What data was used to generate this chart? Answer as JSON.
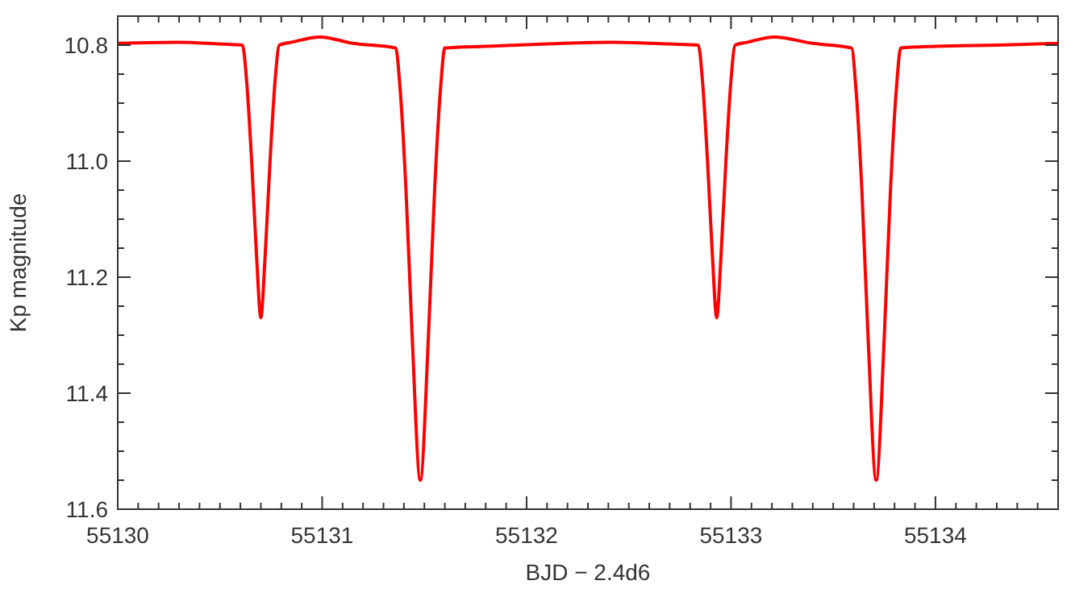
{
  "chart_data": {
    "type": "line",
    "xlabel": "BJD − 2.4d6",
    "ylabel": "Kp magnitude",
    "xlim": [
      55130,
      55134.6
    ],
    "ylim": [
      11.6,
      10.75
    ],
    "xticks": [
      55130,
      {
        "value": 55130.1,
        "label": null
      },
      {
        "value": 55130.2,
        "label": null
      },
      {
        "value": 55130.3,
        "label": null
      },
      {
        "value": 55130.4,
        "label": null
      },
      {
        "value": 55130.5,
        "label": null
      },
      {
        "value": 55130.6,
        "label": null
      },
      {
        "value": 55130.7,
        "label": null
      },
      {
        "value": 55130.8,
        "label": null
      },
      {
        "value": 55130.9,
        "label": null
      },
      55131,
      {
        "value": 55131.1,
        "label": null
      },
      {
        "value": 55131.2,
        "label": null
      },
      {
        "value": 55131.3,
        "label": null
      },
      {
        "value": 55131.4,
        "label": null
      },
      {
        "value": 55131.5,
        "label": null
      },
      {
        "value": 55131.6,
        "label": null
      },
      {
        "value": 55131.7,
        "label": null
      },
      {
        "value": 55131.8,
        "label": null
      },
      {
        "value": 55131.9,
        "label": null
      },
      55132,
      {
        "value": 55132.1,
        "label": null
      },
      {
        "value": 55132.2,
        "label": null
      },
      {
        "value": 55132.3,
        "label": null
      },
      {
        "value": 55132.4,
        "label": null
      },
      {
        "value": 55132.5,
        "label": null
      },
      {
        "value": 55132.6,
        "label": null
      },
      {
        "value": 55132.7,
        "label": null
      },
      {
        "value": 55132.8,
        "label": null
      },
      {
        "value": 55132.9,
        "label": null
      },
      55133,
      {
        "value": 55133.1,
        "label": null
      },
      {
        "value": 55133.2,
        "label": null
      },
      {
        "value": 55133.3,
        "label": null
      },
      {
        "value": 55133.4,
        "label": null
      },
      {
        "value": 55133.5,
        "label": null
      },
      {
        "value": 55133.6,
        "label": null
      },
      {
        "value": 55133.7,
        "label": null
      },
      {
        "value": 55133.8,
        "label": null
      },
      {
        "value": 55133.9,
        "label": null
      },
      55134,
      {
        "value": 55134.1,
        "label": null
      },
      {
        "value": 55134.2,
        "label": null
      },
      {
        "value": 55134.3,
        "label": null
      },
      {
        "value": 55134.4,
        "label": null
      },
      {
        "value": 55134.5,
        "label": null
      }
    ],
    "yticks": [
      10.8,
      {
        "value": 10.85,
        "label": null
      },
      {
        "value": 10.9,
        "label": null
      },
      {
        "value": 10.95,
        "label": null
      },
      {
        "value": 11.0,
        "label": "11.0"
      },
      {
        "value": 11.05,
        "label": null
      },
      {
        "value": 11.1,
        "label": null
      },
      {
        "value": 11.15,
        "label": null
      },
      11.2,
      {
        "value": 11.25,
        "label": null
      },
      {
        "value": 11.3,
        "label": null
      },
      {
        "value": 11.35,
        "label": null
      },
      11.4,
      {
        "value": 11.45,
        "label": null
      },
      {
        "value": 11.5,
        "label": null
      },
      {
        "value": 11.55,
        "label": null
      },
      11.6
    ],
    "marker": "none",
    "line_style": "solid",
    "series": [
      {
        "color": "#ff0000",
        "x": [
          55130,
          55130.3,
          55130.5,
          55130.61,
          55130.63,
          55130.655,
          55130.68,
          55130.7,
          55130.72,
          55130.745,
          55130.77,
          55130.79,
          55130.85,
          55130.99,
          55131.15,
          55131.36,
          55131.38,
          55131.41,
          55131.44,
          55131.48,
          55131.52,
          55131.55,
          55131.58,
          55131.6,
          55131.8,
          55132.1,
          55132.4,
          55132.7,
          55132.84,
          55132.86,
          55132.885,
          55132.91,
          55132.93,
          55132.95,
          55132.975,
          55133,
          55133.02,
          55133.08,
          55133.21,
          55133.4,
          55133.59,
          55133.61,
          55133.64,
          55133.67,
          55133.71,
          55133.75,
          55133.78,
          55133.81,
          55133.83,
          55134,
          55134.3,
          55134.6
        ],
        "values": [
          10.797,
          10.795,
          10.798,
          10.8,
          10.86,
          11,
          11.17,
          11.27,
          11.17,
          11,
          10.86,
          10.8,
          10.795,
          10.786,
          10.797,
          10.805,
          10.87,
          11.05,
          11.3,
          11.55,
          11.3,
          11.05,
          10.87,
          10.805,
          10.802,
          10.798,
          10.795,
          10.798,
          10.8,
          10.86,
          11,
          11.17,
          11.27,
          11.17,
          11,
          10.86,
          10.8,
          10.795,
          10.786,
          10.797,
          10.805,
          10.87,
          11.05,
          11.3,
          11.55,
          11.3,
          11.05,
          10.87,
          10.805,
          10.802,
          10.8,
          10.797
        ]
      }
    ]
  }
}
